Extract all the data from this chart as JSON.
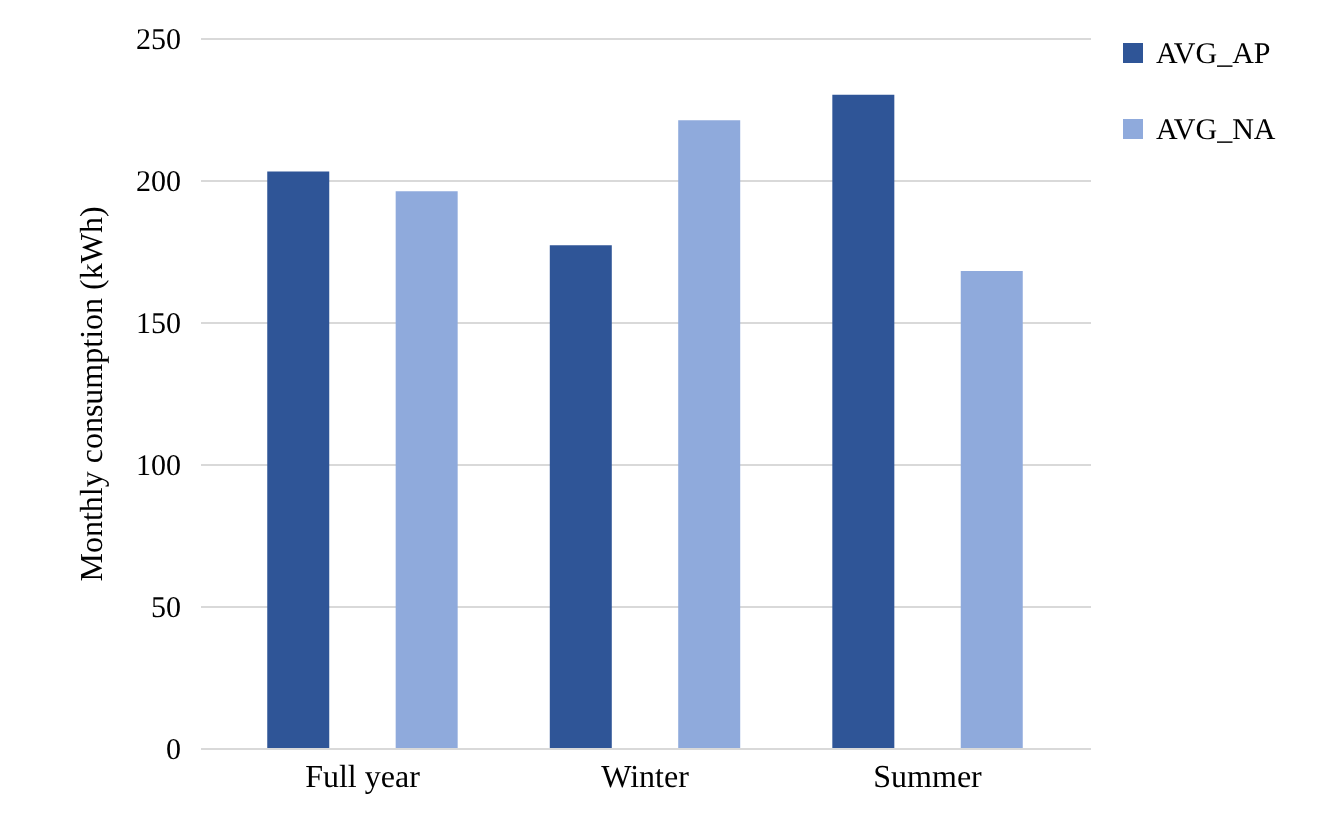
{
  "chart_data": {
    "type": "bar",
    "ylabel": "Monthly consumption (kWh)",
    "categories": [
      "Full year",
      "Winter",
      "Summer"
    ],
    "series": [
      {
        "name": "AVG_AP",
        "color": "#2f5597",
        "values": [
          203,
          177,
          230
        ]
      },
      {
        "name": "AVG_NA",
        "color": "#8faadc",
        "values": [
          196,
          221,
          168
        ]
      }
    ],
    "ylim": [
      0,
      250
    ],
    "yticks": [
      0,
      50,
      100,
      150,
      200,
      250
    ],
    "grid": "y",
    "legend": "right"
  }
}
